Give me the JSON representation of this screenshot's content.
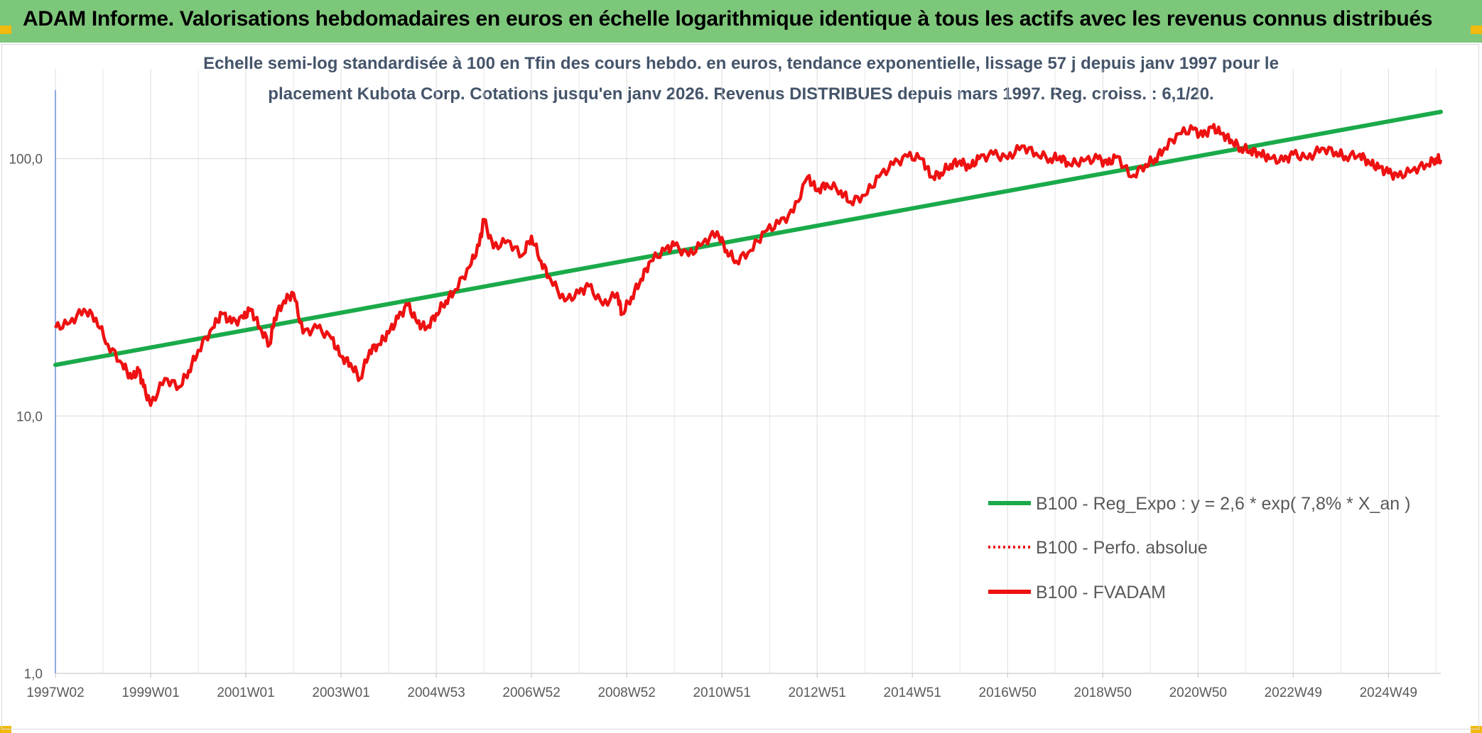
{
  "header": {
    "title": "ADAM Informe. Valorisations hebdomadaires en euros en échelle logarithmique identique à tous les actifs avec les revenus connus distribués"
  },
  "colors": {
    "header_bg": "#7dc77a",
    "regression_line": "#1aaa4a",
    "fvadam_line": "#ee1111",
    "perf_line": "#ee1111",
    "corner_accent": "#f2b90f"
  },
  "chart_data": {
    "type": "line",
    "subtitle_lines": [
      "Echelle semi-log standardisée à 100 en Tfin des cours hebdo. en euros, tendance exponentielle, lissage 57 j depuis janv 1997 pour le",
      "placement Kubota Corp. Cotations jusqu'en janv 2026. Revenus DISTRIBUES depuis mars 1997. Reg. croiss. : 6,1/20."
    ],
    "y_scale": "log",
    "ylim": [
      1,
      180
    ],
    "y_ticks": [
      {
        "value": 1,
        "label": "1,0"
      },
      {
        "value": 10,
        "label": "10,0"
      },
      {
        "value": 100,
        "label": "100,0"
      }
    ],
    "x_range": [
      1997.0,
      2026.1
    ],
    "x_ticks": [
      {
        "x": 1997.0,
        "label": "1997W02"
      },
      {
        "x": 1999.0,
        "label": "1999W01"
      },
      {
        "x": 2001.0,
        "label": "2001W01"
      },
      {
        "x": 2003.0,
        "label": "2003W01"
      },
      {
        "x": 2005.0,
        "label": "2004W53"
      },
      {
        "x": 2007.0,
        "label": "2006W52"
      },
      {
        "x": 2009.0,
        "label": "2008W52"
      },
      {
        "x": 2011.0,
        "label": "2010W51"
      },
      {
        "x": 2013.0,
        "label": "2012W51"
      },
      {
        "x": 2015.0,
        "label": "2014W51"
      },
      {
        "x": 2017.0,
        "label": "2016W50"
      },
      {
        "x": 2019.0,
        "label": "2018W50"
      },
      {
        "x": 2021.0,
        "label": "2020W50"
      },
      {
        "x": 2023.0,
        "label": "2022W49"
      },
      {
        "x": 2025.0,
        "label": "2024W49"
      }
    ],
    "grid": "vertical-and-horizontal",
    "legend_position": "bottom-right",
    "series": [
      {
        "name": "B100 - Reg_Expo : y = 2,6 * exp( 7,8% *  X_an )",
        "style": "solid-green",
        "x": [
          1997.0,
          2026.1
        ],
        "y": [
          15.8,
          152
        ]
      },
      {
        "name": "B100 - Perfo. absolue",
        "style": "dotted-red",
        "x": [],
        "y": []
      },
      {
        "name": "B100 - FVADAM",
        "style": "solid-red",
        "x": [
          1997.0,
          1997.3,
          1997.6,
          1997.85,
          1998.1,
          1998.4,
          1998.6,
          1998.75,
          1998.85,
          1999.0,
          1999.3,
          1999.6,
          1999.8,
          2000.0,
          2000.3,
          2000.5,
          2000.7,
          2000.95,
          2001.1,
          2001.3,
          2001.5,
          2001.6,
          2001.8,
          2002.0,
          2002.2,
          2002.5,
          2002.8,
          2003.0,
          2003.2,
          2003.4,
          2003.6,
          2003.8,
          2004.0,
          2004.2,
          2004.4,
          2004.6,
          2004.8,
          2005.0,
          2005.2,
          2005.4,
          2005.7,
          2005.9,
          2006.0,
          2006.2,
          2006.5,
          2006.8,
          2007.0,
          2007.2,
          2007.4,
          2007.7,
          2008.0,
          2008.2,
          2008.5,
          2008.8,
          2008.9,
          2009.1,
          2009.3,
          2009.5,
          2009.8,
          2010.0,
          2010.3,
          2010.6,
          2010.9,
          2011.1,
          2011.3,
          2011.6,
          2011.9,
          2012.2,
          2012.5,
          2012.8,
          2013.0,
          2013.2,
          2013.5,
          2013.7,
          2014.0,
          2014.3,
          2014.6,
          2014.9,
          2015.2,
          2015.4,
          2015.6,
          2015.8,
          2016.0,
          2016.2,
          2016.4,
          2016.7,
          2017.0,
          2017.3,
          2017.6,
          2017.9,
          2018.1,
          2018.3,
          2018.6,
          2018.9,
          2019.1,
          2019.3,
          2019.6,
          2019.9,
          2020.1,
          2020.3,
          2020.6,
          2020.9,
          2021.1,
          2021.3,
          2021.5,
          2021.7,
          2021.9,
          2022.1,
          2022.3,
          2022.5,
          2022.8,
          2023.0,
          2023.3,
          2023.6,
          2023.9,
          2024.1,
          2024.4,
          2024.6,
          2024.8,
          2025.0,
          2025.2,
          2025.5,
          2025.8,
          2026.0,
          2026.1
        ],
        "y": [
          22,
          23,
          26,
          24,
          19,
          16,
          14,
          15,
          13,
          11,
          14,
          13,
          15,
          18,
          22,
          25,
          23,
          24,
          26,
          22,
          19,
          24,
          28,
          30,
          21,
          22,
          20,
          17,
          16,
          14,
          18,
          19,
          21,
          24,
          27,
          23,
          22,
          25,
          28,
          31,
          38,
          46,
          58,
          45,
          48,
          42,
          50,
          40,
          34,
          28,
          30,
          32,
          27,
          30,
          25,
          29,
          34,
          40,
          44,
          46,
          42,
          47,
          52,
          44,
          40,
          44,
          52,
          56,
          62,
          85,
          75,
          80,
          75,
          68,
          72,
          85,
          95,
          102,
          100,
          85,
          88,
          95,
          98,
          92,
          100,
          104,
          100,
          112,
          105,
          100,
          102,
          95,
          98,
          100,
          95,
          102,
          85,
          95,
          100,
          110,
          125,
          130,
          122,
          132,
          125,
          118,
          110,
          108,
          105,
          100,
          98,
          104,
          100,
          110,
          106,
          102,
          104,
          96,
          92,
          88,
          85,
          90,
          95,
          100,
          99
        ]
      }
    ]
  }
}
